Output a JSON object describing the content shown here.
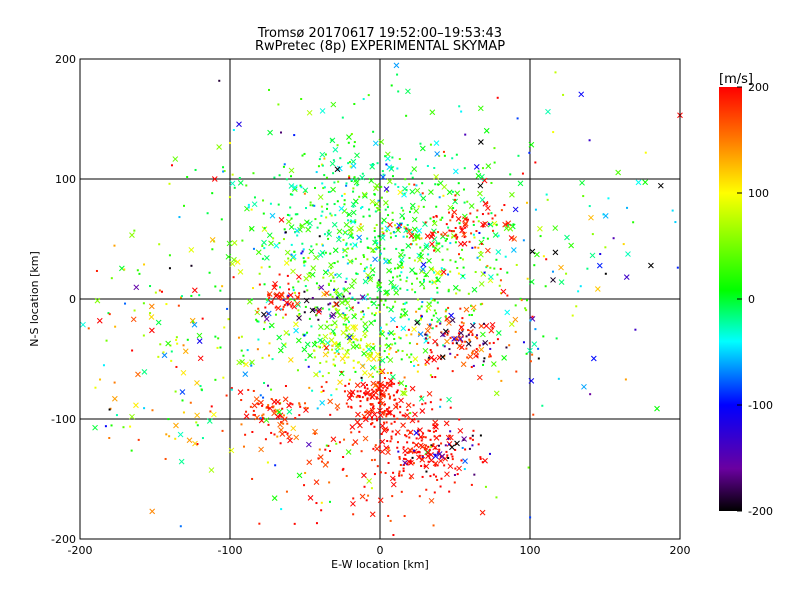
{
  "chart_data": {
    "type": "scatter",
    "title": "Tromsø 20170617 19:52:00–19:53:43",
    "subtitle": "RwPretec (8p) EXPERIMENTAL SKYMAP",
    "xlabel": "E-W location [km]",
    "ylabel": "N-S location [km]",
    "xlim": [
      -200,
      200
    ],
    "ylim": [
      -200,
      200
    ],
    "xticks": [
      "-200",
      "-100",
      "0",
      "100",
      "200"
    ],
    "yticks": [
      "-200",
      "-100",
      "0",
      "100",
      "200"
    ],
    "grid": true,
    "colorbar": {
      "label": "[m/s]",
      "range": [
        -200,
        200
      ],
      "ticks": [
        "200",
        "100",
        "0",
        "-100",
        "-200"
      ],
      "colormap": [
        "#000000",
        "#6a00a0",
        "#0000ff",
        "#00ffff",
        "#00ff00",
        "#ffff00",
        "#ff8000",
        "#ff0000"
      ]
    },
    "marker_types": [
      "x",
      "dot"
    ],
    "clusters": [
      {
        "x": 0,
        "y": 20,
        "sx": 45,
        "sy": 45,
        "v": 20,
        "vs": 40,
        "n": 650
      },
      {
        "x": -15,
        "y": 80,
        "sx": 45,
        "sy": 40,
        "v": 0,
        "vs": 35,
        "n": 280
      },
      {
        "x": 0,
        "y": -85,
        "sx": 10,
        "sy": 12,
        "v": 195,
        "vs": 10,
        "n": 160
      },
      {
        "x": 30,
        "y": -125,
        "sx": 16,
        "sy": 15,
        "v": 195,
        "vs": 10,
        "n": 170
      },
      {
        "x": -20,
        "y": -130,
        "sx": 35,
        "sy": 40,
        "v": 190,
        "vs": 20,
        "n": 110
      },
      {
        "x": 50,
        "y": 62,
        "sx": 20,
        "sy": 12,
        "v": 190,
        "vs": 15,
        "n": 80
      },
      {
        "x": 50,
        "y": -35,
        "sx": 20,
        "sy": 12,
        "v": 180,
        "vs": 30,
        "n": 100
      },
      {
        "x": -65,
        "y": 0,
        "sx": 8,
        "sy": 8,
        "v": 195,
        "vs": 10,
        "n": 40
      },
      {
        "x": -70,
        "y": -95,
        "sx": 15,
        "sy": 10,
        "v": 185,
        "vs": 25,
        "n": 70
      },
      {
        "x": -20,
        "y": -45,
        "sx": 15,
        "sy": 12,
        "v": 90,
        "vs": 20,
        "n": 80
      },
      {
        "x": -40,
        "y": 0,
        "sx": 15,
        "sy": 10,
        "v": -170,
        "vs": 25,
        "n": 30
      },
      {
        "x": 45,
        "y": -130,
        "sx": 15,
        "sy": 12,
        "v": -150,
        "vs": 40,
        "n": 30
      },
      {
        "x": 55,
        "y": -35,
        "sx": 15,
        "sy": 10,
        "v": -170,
        "vs": 25,
        "n": 30
      },
      {
        "x": -120,
        "y": -40,
        "sx": 50,
        "sy": 50,
        "v": 80,
        "vs": 90,
        "n": 180
      },
      {
        "x": 110,
        "y": 60,
        "sx": 50,
        "sy": 60,
        "v": 0,
        "vs": 120,
        "n": 100
      },
      {
        "x": 0,
        "y": 0,
        "sx": 120,
        "sy": 120,
        "v": 0,
        "vs": 130,
        "n": 180
      }
    ]
  }
}
